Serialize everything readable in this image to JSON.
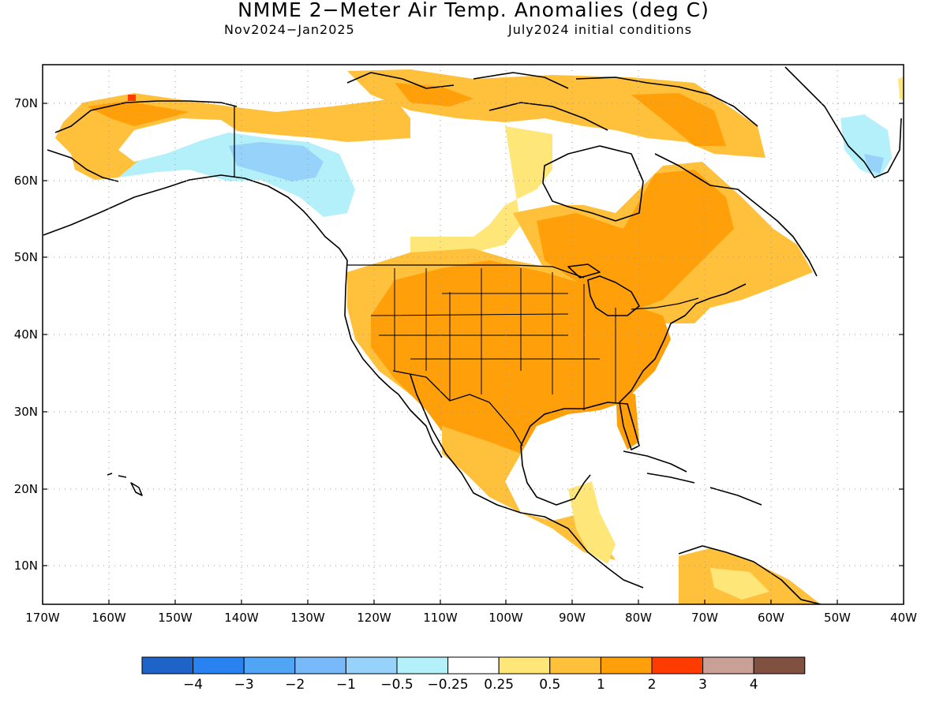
{
  "title": "NMME 2−Meter Air Temp. Anomalies (deg C)",
  "subtitle_left": "Nov2024−Jan2025",
  "subtitle_right": "July2024 initial conditions",
  "lat_labels": [
    "70N",
    "60N",
    "50N",
    "40N",
    "30N",
    "20N",
    "10N"
  ],
  "lon_labels": [
    "170W",
    "160W",
    "150W",
    "140W",
    "130W",
    "120W",
    "110W",
    "100W",
    "90W",
    "80W",
    "70W",
    "60W",
    "50W",
    "40W"
  ],
  "colorbar": {
    "colors": [
      "#1e64c8",
      "#2882f0",
      "#50a5f5",
      "#78b9fa",
      "#96d2fa",
      "#b4f0fa",
      "#ffffff",
      "#ffe678",
      "#ffc03c",
      "#ffa00a",
      "#ff3c00",
      "#c8a096",
      "#805040"
    ],
    "labels": [
      "−4",
      "−3",
      "−2",
      "−1",
      "−0.5",
      "−0.25",
      "0.25",
      "0.5",
      "1",
      "2",
      "3",
      "4"
    ]
  },
  "map_colors": {
    "light_yellow": "#ffe678",
    "orange_light": "#ffc03c",
    "orange": "#ffa00a",
    "red": "#ff3c00",
    "light_cyan": "#b4f0fa",
    "light_blue": "#96d2fa",
    "coast": "#000000"
  }
}
